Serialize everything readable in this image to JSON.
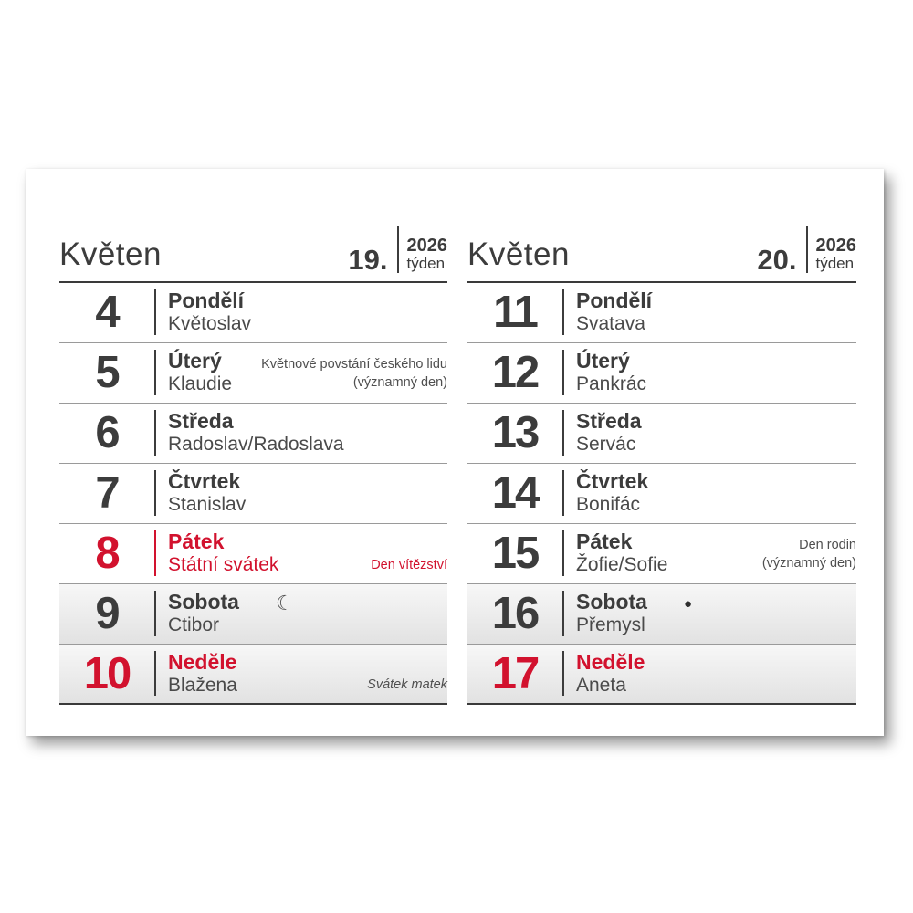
{
  "colors": {
    "accent_red": "#d2122e",
    "text_dark": "#3c3c3c",
    "text_gray": "#4f4f4f",
    "weekend_bg_top": "#f7f7f7",
    "weekend_bg_bottom": "#e2e2e2"
  },
  "weeks": [
    {
      "month": "Květen",
      "week_number": "19.",
      "year": "2026",
      "week_word": "týden",
      "days": [
        {
          "number": "4",
          "day_name": "Pondělí",
          "name": "Květoslav"
        },
        {
          "number": "5",
          "day_name": "Úterý",
          "name": "Klaudie",
          "note": "Květnové povstání českého lidu\n(významný den)"
        },
        {
          "number": "6",
          "day_name": "Středa",
          "name": "Radoslav/Radoslava"
        },
        {
          "number": "7",
          "day_name": "Čtvrtek",
          "name": "Stanislav"
        },
        {
          "number": "8",
          "day_name": "Pátek",
          "name": "Státní svátek",
          "note": "Den vítězství",
          "holiday": true
        },
        {
          "number": "9",
          "day_name": "Sobota",
          "name": "Ctibor",
          "moon": "last-quarter",
          "moon_glyph": "☾"
        },
        {
          "number": "10",
          "day_name": "Neděle",
          "name": "Blažena",
          "note": "Svátek matek",
          "sunday": true
        }
      ]
    },
    {
      "month": "Květen",
      "week_number": "20.",
      "year": "2026",
      "week_word": "týden",
      "days": [
        {
          "number": "11",
          "day_name": "Pondělí",
          "name": "Svatava"
        },
        {
          "number": "12",
          "day_name": "Úterý",
          "name": "Pankrác"
        },
        {
          "number": "13",
          "day_name": "Středa",
          "name": "Servác"
        },
        {
          "number": "14",
          "day_name": "Čtvrtek",
          "name": "Bonifác"
        },
        {
          "number": "15",
          "day_name": "Pátek",
          "name": "Žofie/Sofie",
          "note": "Den rodin\n(významný den)"
        },
        {
          "number": "16",
          "day_name": "Sobota",
          "name": "Přemysl",
          "moon": "new-moon",
          "moon_glyph": "●"
        },
        {
          "number": "17",
          "day_name": "Neděle",
          "name": "Aneta",
          "sunday": true
        }
      ]
    }
  ]
}
